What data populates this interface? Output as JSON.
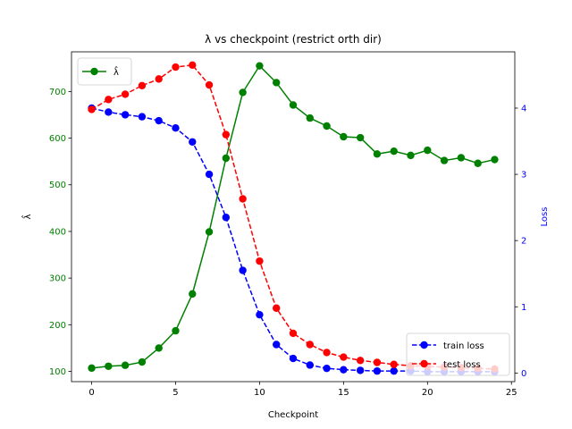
{
  "chart_data": {
    "type": "line",
    "title": "λ vs checkpoint (restrict orth dir)",
    "xlabel": "Checkpoint",
    "ylabel_left": "λ̂",
    "ylabel_right": "Loss",
    "xlim": [
      -1.2,
      25.2
    ],
    "ylim_left": [
      78,
      785
    ],
    "ylim_right": [
      -0.13,
      4.85
    ],
    "x_ticks": [
      0,
      5,
      10,
      15,
      20,
      25
    ],
    "y_left_ticks": [
      100,
      200,
      300,
      400,
      500,
      600,
      700
    ],
    "y_right_ticks": [
      0,
      1,
      2,
      3,
      4
    ],
    "x": [
      0,
      1,
      2,
      3,
      4,
      5,
      6,
      7,
      8,
      9,
      10,
      11,
      12,
      13,
      14,
      15,
      16,
      17,
      18,
      19,
      20,
      21,
      22,
      23,
      24
    ],
    "series": [
      {
        "name": "λ̂",
        "axis": "left",
        "color": "#008000",
        "style": "solid",
        "values": [
          107,
          111,
          113,
          120,
          150,
          187,
          266,
          399,
          557,
          698,
          755,
          719,
          671,
          643,
          626,
          603,
          601,
          566,
          572,
          563,
          574,
          552,
          558,
          546,
          554
        ]
      },
      {
        "name": "train loss",
        "axis": "right",
        "color": "#0000ff",
        "style": "dashed",
        "values": [
          4.0,
          3.94,
          3.9,
          3.87,
          3.81,
          3.7,
          3.49,
          3.0,
          2.35,
          1.55,
          0.88,
          0.43,
          0.22,
          0.12,
          0.07,
          0.05,
          0.04,
          0.03,
          0.03,
          0.03,
          0.02,
          0.02,
          0.02,
          0.02,
          0.02
        ]
      },
      {
        "name": "test loss",
        "axis": "right",
        "color": "#ff0000",
        "style": "dashed",
        "values": [
          3.98,
          4.13,
          4.21,
          4.34,
          4.44,
          4.62,
          4.65,
          4.35,
          3.6,
          2.63,
          1.69,
          0.98,
          0.6,
          0.43,
          0.31,
          0.24,
          0.19,
          0.16,
          0.13,
          0.11,
          0.1,
          0.09,
          0.08,
          0.07,
          0.06
        ]
      }
    ],
    "legends": [
      {
        "position": "upper-left",
        "entries": [
          "λ̂"
        ]
      },
      {
        "position": "lower-right",
        "entries": [
          "train loss",
          "test loss"
        ]
      }
    ],
    "grid": false
  }
}
